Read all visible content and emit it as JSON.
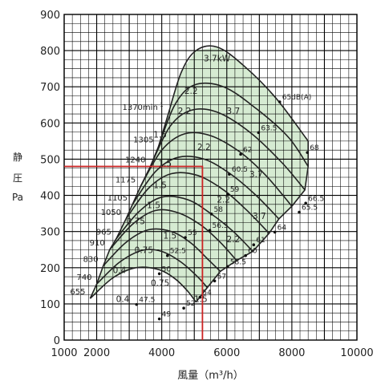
{
  "chart_data": {
    "type": "line",
    "xlabel": "風量（m³/h）",
    "ylabel_chars": [
      "静",
      "圧",
      "Pa"
    ],
    "xlim": [
      1000,
      10000
    ],
    "ylim": [
      0,
      900
    ],
    "x_ticks": [
      "1000",
      "2000",
      "4000",
      "6000",
      "8000",
      "10000"
    ],
    "y_ticks": [
      "0",
      "100",
      "200",
      "300",
      "400",
      "500",
      "600",
      "700",
      "800",
      "900"
    ],
    "grid": true,
    "operating_region_color": "#d6ebd2",
    "curve_color": "#222222",
    "marker_color": "#cc2222",
    "speed_curves": [
      {
        "name": "655",
        "points": [
          [
            1800,
            115
          ],
          [
            2500,
            172
          ],
          [
            3200,
            200
          ],
          [
            3900,
            195
          ],
          [
            4400,
            170
          ],
          [
            4800,
            135
          ],
          [
            5050,
            105
          ]
        ]
      },
      {
        "name": "740",
        "points": [
          [
            2000,
            155
          ],
          [
            2700,
            215
          ],
          [
            3400,
            248
          ],
          [
            4000,
            245
          ],
          [
            4600,
            215
          ],
          [
            5100,
            175
          ],
          [
            5400,
            145
          ]
        ]
      },
      {
        "name": "830",
        "points": [
          [
            2200,
            205
          ],
          [
            2900,
            270
          ],
          [
            3600,
            305
          ],
          [
            4300,
            300
          ],
          [
            4900,
            268
          ],
          [
            5400,
            225
          ],
          [
            5800,
            190
          ]
        ]
      },
      {
        "name": "910",
        "points": [
          [
            2400,
            250
          ],
          [
            3100,
            320
          ],
          [
            3800,
            358
          ],
          [
            4500,
            352
          ],
          [
            5200,
            318
          ],
          [
            5800,
            270
          ],
          [
            6300,
            220
          ]
        ]
      },
      {
        "name": "965",
        "points": [
          [
            2600,
            280
          ],
          [
            3300,
            355
          ],
          [
            4000,
            395
          ],
          [
            4800,
            388
          ],
          [
            5500,
            350
          ],
          [
            6200,
            300
          ],
          [
            6800,
            245
          ]
        ]
      },
      {
        "name": "1050",
        "points": [
          [
            2900,
            335
          ],
          [
            3600,
            420
          ],
          [
            4300,
            460
          ],
          [
            5100,
            455
          ],
          [
            5900,
            415
          ],
          [
            6600,
            360
          ],
          [
            7300,
            295
          ]
        ]
      },
      {
        "name": "1105",
        "points": [
          [
            3100,
            375
          ],
          [
            3800,
            465
          ],
          [
            4500,
            505
          ],
          [
            5300,
            500
          ],
          [
            6100,
            460
          ],
          [
            6900,
            400
          ],
          [
            7600,
            335
          ]
        ]
      },
      {
        "name": "1175",
        "points": [
          [
            3350,
            425
          ],
          [
            4000,
            525
          ],
          [
            4700,
            570
          ],
          [
            5500,
            565
          ],
          [
            6400,
            520
          ],
          [
            7200,
            455
          ],
          [
            8000,
            370
          ]
        ]
      },
      {
        "name": "1240",
        "points": [
          [
            3650,
            480
          ],
          [
            4250,
            590
          ],
          [
            4900,
            635
          ],
          [
            5700,
            630
          ],
          [
            6700,
            575
          ],
          [
            7700,
            490
          ],
          [
            8400,
            415
          ]
        ]
      },
      {
        "name": "1305",
        "points": [
          [
            3900,
            535
          ],
          [
            4400,
            650
          ],
          [
            5000,
            705
          ],
          [
            5900,
            700
          ],
          [
            6900,
            640
          ],
          [
            7900,
            560
          ],
          [
            8500,
            480
          ]
        ]
      },
      {
        "name": "1370",
        "points": [
          [
            4200,
            625
          ],
          [
            4600,
            740
          ],
          [
            5050,
            800
          ],
          [
            5700,
            810
          ],
          [
            6500,
            760
          ],
          [
            7500,
            670
          ],
          [
            8500,
            550
          ]
        ]
      }
    ],
    "power_labels": [
      {
        "label": "3.7kW",
        "x": 5700,
        "y": 770
      },
      {
        "label": "2.2",
        "x": 4900,
        "y": 680
      },
      {
        "label": "3.7",
        "x": 6200,
        "y": 625
      },
      {
        "label": "2.2",
        "x": 4700,
        "y": 625
      },
      {
        "label": "1.5",
        "x": 3950,
        "y": 560
      },
      {
        "label": "2.2",
        "x": 5300,
        "y": 525
      },
      {
        "label": "1.5",
        "x": 4100,
        "y": 480
      },
      {
        "label": "3.7",
        "x": 6900,
        "y": 450
      },
      {
        "label": "1.5",
        "x": 3950,
        "y": 420
      },
      {
        "label": "2.2",
        "x": 5900,
        "y": 380
      },
      {
        "label": "1.5",
        "x": 3750,
        "y": 365
      },
      {
        "label": "3.7",
        "x": 7000,
        "y": 335
      },
      {
        "label": "0.75",
        "x": 3200,
        "y": 320
      },
      {
        "label": "1.5",
        "x": 4250,
        "y": 280
      },
      {
        "label": "2.2",
        "x": 6200,
        "y": 270
      },
      {
        "label": "0.75",
        "x": 3450,
        "y": 240
      },
      {
        "label": "0.4",
        "x": 2700,
        "y": 185
      },
      {
        "label": "0.75",
        "x": 3950,
        "y": 150
      },
      {
        "label": "0.4",
        "x": 2800,
        "y": 105
      },
      {
        "label": "1.5",
        "x": 5200,
        "y": 105
      }
    ],
    "noise_labels": [
      {
        "label": "65dB(A)",
        "x": 7700,
        "y": 665
      },
      {
        "label": "63.5",
        "x": 7050,
        "y": 580
      },
      {
        "label": "68",
        "x": 8550,
        "y": 525
      },
      {
        "label": "62",
        "x": 6500,
        "y": 520
      },
      {
        "label": "60.5",
        "x": 6150,
        "y": 465
      },
      {
        "label": "66.5",
        "x": 8500,
        "y": 385
      },
      {
        "label": "59",
        "x": 6100,
        "y": 410
      },
      {
        "label": "58",
        "x": 5600,
        "y": 355
      },
      {
        "label": "65.5",
        "x": 8300,
        "y": 360
      },
      {
        "label": "56.5",
        "x": 5550,
        "y": 310
      },
      {
        "label": "64",
        "x": 7550,
        "y": 305
      },
      {
        "label": "55",
        "x": 4800,
        "y": 290
      },
      {
        "label": "61",
        "x": 6900,
        "y": 270
      },
      {
        "label": "52.5",
        "x": 4250,
        "y": 240
      },
      {
        "label": "60",
        "x": 6650,
        "y": 240
      },
      {
        "label": "50",
        "x": 4000,
        "y": 190
      },
      {
        "label": "58.5",
        "x": 6100,
        "y": 210
      },
      {
        "label": "57",
        "x": 5700,
        "y": 170
      },
      {
        "label": "47.5",
        "x": 3300,
        "y": 105
      },
      {
        "label": "54",
        "x": 5250,
        "y": 125
      },
      {
        "label": "52",
        "x": 4750,
        "y": 95
      },
      {
        "label": "49",
        "x": 4000,
        "y": 65
      }
    ],
    "marker_lines": [
      {
        "x": [
          1000,
          5250,
          5250
        ],
        "y": [
          480,
          480,
          0
        ]
      }
    ]
  }
}
